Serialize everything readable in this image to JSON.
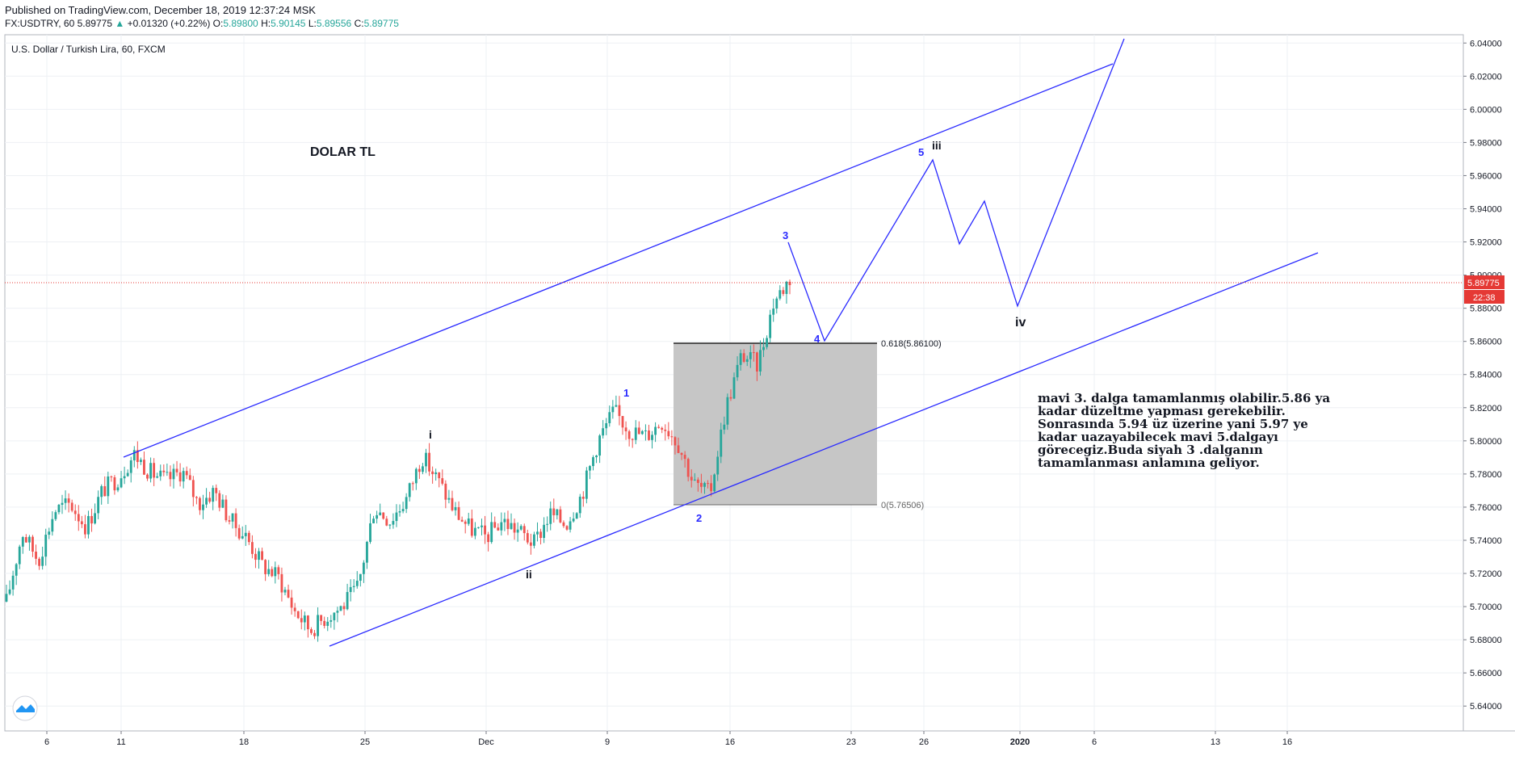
{
  "header": {
    "published": "Published on TradingView.com, December 18, 2019 12:37:24 MSK",
    "symbol": "FX:USDTRY, 60",
    "last": "5.89775",
    "arrow": "▲",
    "change": "+0.01320 (+0.22%)",
    "o_label": "O:",
    "o": "5.89800",
    "h_label": "H:",
    "h": "5.90145",
    "l_label": "L:",
    "l": "5.89556",
    "c_label": "C:",
    "c": "5.89775"
  },
  "legend_title": "U.S. Dollar / Turkish Lira, 60, FXCM",
  "colors": {
    "up": "#26a69a",
    "down": "#ef5350",
    "annotation": "#2a2aff",
    "price_line": "#e53935"
  },
  "chart_data": {
    "type": "candlestick",
    "title": "U.S. Dollar / Turkish Lira, 60, FXCM",
    "ylim": [
      5.625,
      6.045
    ],
    "y_ticks": [
      "6.04000",
      "6.02000",
      "6.00000",
      "5.98000",
      "5.96000",
      "5.94000",
      "5.92000",
      "5.90000",
      "5.88000",
      "5.86000",
      "5.84000",
      "5.82000",
      "5.80000",
      "5.78000",
      "5.76000",
      "5.74000",
      "5.72000",
      "5.70000",
      "5.68000",
      "5.66000",
      "5.64000"
    ],
    "x_ticks": [
      "6",
      "11",
      "18",
      "25",
      "Dec",
      "9",
      "16",
      "23",
      "26",
      "2020",
      "6",
      "13",
      "16"
    ],
    "price_series": [
      {
        "d": 0.0,
        "p": 5.703
      },
      {
        "d": 1.0,
        "p": 5.745
      },
      {
        "d": 2.0,
        "p": 5.728
      },
      {
        "d": 3.0,
        "p": 5.758
      },
      {
        "d": 4.0,
        "p": 5.762
      },
      {
        "d": 5.0,
        "p": 5.748
      },
      {
        "d": 6.0,
        "p": 5.77
      },
      {
        "d": 7.0,
        "p": 5.778
      },
      {
        "d": 8.0,
        "p": 5.792
      },
      {
        "d": 9.0,
        "p": 5.781
      },
      {
        "d": 10.0,
        "p": 5.776
      },
      {
        "d": 11.0,
        "p": 5.782
      },
      {
        "d": 12.0,
        "p": 5.762
      },
      {
        "d": 13.0,
        "p": 5.77
      },
      {
        "d": 14.0,
        "p": 5.752
      },
      {
        "d": 15.0,
        "p": 5.742
      },
      {
        "d": 16.0,
        "p": 5.725
      },
      {
        "d": 17.0,
        "p": 5.718
      },
      {
        "d": 18.0,
        "p": 5.698
      },
      {
        "d": 19.0,
        "p": 5.686
      },
      {
        "d": 20.0,
        "p": 5.694
      },
      {
        "d": 21.0,
        "p": 5.7
      },
      {
        "d": 22.0,
        "p": 5.712
      },
      {
        "d": 23.0,
        "p": 5.76
      },
      {
        "d": 24.0,
        "p": 5.752
      },
      {
        "d": 25.0,
        "p": 5.765
      },
      {
        "d": 26.0,
        "p": 5.791
      },
      {
        "d": 27.0,
        "p": 5.776
      },
      {
        "d": 28.0,
        "p": 5.758
      },
      {
        "d": 29.0,
        "p": 5.747
      },
      {
        "d": 30.0,
        "p": 5.742
      },
      {
        "d": 31.0,
        "p": 5.752
      },
      {
        "d": 32.0,
        "p": 5.746
      },
      {
        "d": 33.0,
        "p": 5.738
      },
      {
        "d": 34.0,
        "p": 5.756
      },
      {
        "d": 35.0,
        "p": 5.75
      },
      {
        "d": 36.0,
        "p": 5.768
      },
      {
        "d": 37.0,
        "p": 5.8
      },
      {
        "d": 38.0,
        "p": 5.818
      },
      {
        "d": 39.0,
        "p": 5.806
      },
      {
        "d": 40.0,
        "p": 5.803
      },
      {
        "d": 41.0,
        "p": 5.812
      },
      {
        "d": 42.0,
        "p": 5.799
      },
      {
        "d": 43.0,
        "p": 5.774
      },
      {
        "d": 44.0,
        "p": 5.768
      },
      {
        "d": 45.0,
        "p": 5.82
      },
      {
        "d": 46.0,
        "p": 5.852
      },
      {
        "d": 47.0,
        "p": 5.846
      },
      {
        "d": 48.0,
        "p": 5.884
      },
      {
        "d": 49.0,
        "p": 5.898
      }
    ],
    "annotations": {
      "title_text": "DOLAR TL",
      "fib_high": "0.618(5.86100)",
      "fib_low": "0(5.76506)",
      "fib_high_value": 5.861,
      "fib_low_value": 5.76506,
      "blue_labels": [
        "1",
        "2",
        "3",
        "4",
        "5"
      ],
      "black_labels": [
        "i",
        "ii",
        "iii",
        "iv"
      ],
      "commentary": [
        "mavi 3. dalga tamamlanmış olabilir.5.86 ya",
        "kadar düzeltme yapması gerekebilir.",
        "Sonrasında 5.94 üz üzerine yani 5.97 ye",
        "kadar uazayabilecek mavi 5.dalgayı",
        "görecegiz.Buda siyah 3 .dalganın",
        "tamamlanması anlamına geliyor."
      ]
    },
    "current_price": {
      "value": 5.89775,
      "label": "5.89775",
      "timer": "22:38"
    }
  }
}
